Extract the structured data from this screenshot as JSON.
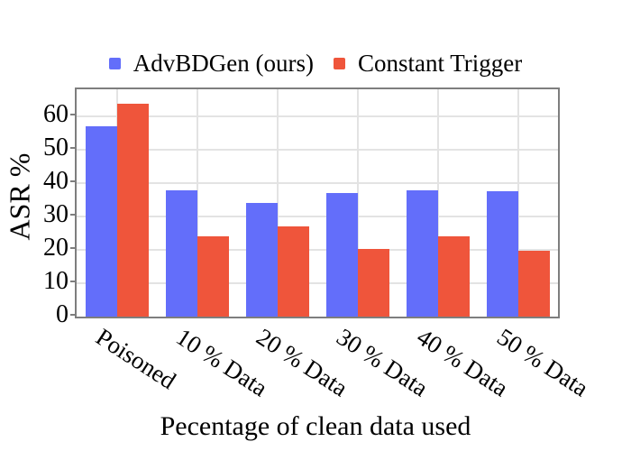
{
  "chart_data": {
    "type": "bar",
    "title": "",
    "categories": [
      "Poisoned",
      "10 % Data",
      "20 % Data",
      "30 % Data",
      "40 % Data",
      "50 % Data"
    ],
    "series": [
      {
        "name": "AdvBDGen (ours)",
        "color": "#636EFA",
        "values": [
          57,
          38,
          34,
          37,
          38,
          37.7
        ]
      },
      {
        "name": "Constant Trigger",
        "color": "#EF553B",
        "values": [
          64,
          24,
          27,
          20.3,
          24,
          19.7
        ]
      }
    ],
    "xlabel": "Pecentage of clean data used",
    "ylabel": "ASR %",
    "ylim": [
      0,
      68.2
    ],
    "yticks": [
      0,
      10,
      20,
      30,
      40,
      50,
      60
    ],
    "grid": true,
    "legend_position": "top-center",
    "colors": {
      "grid": "#e3e3e3",
      "axis_border": "#7e7e7e",
      "text": "#000000",
      "background": "#ffffff"
    }
  }
}
